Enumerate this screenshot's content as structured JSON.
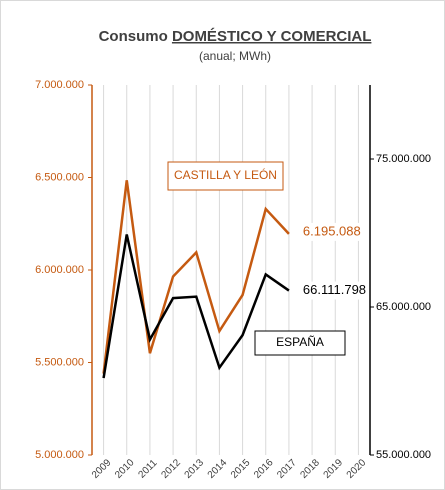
{
  "chart_data": {
    "type": "line",
    "title": [
      "Consumo",
      "DOMÉSTICO Y COMERCIAL"
    ],
    "subtitle": "(anual; MWh)",
    "categories": [
      "2009",
      "2010",
      "2011",
      "2012",
      "2013",
      "2014",
      "2015",
      "2016",
      "2017",
      "2018",
      "2019",
      "2020"
    ],
    "series": [
      {
        "name": "CASTILLA Y LEÓN",
        "color": "#c55a11",
        "axis": "y",
        "values": [
          5440000,
          6485000,
          5550000,
          5965000,
          6095000,
          5670000,
          5865000,
          6330000,
          6195088,
          null,
          null,
          null
        ],
        "value_labels": [
          null,
          null,
          null,
          null,
          null,
          null,
          null,
          null,
          "6.195.088",
          null,
          null,
          null
        ]
      },
      {
        "name": "ESPAÑA",
        "color": "#000000",
        "axis": "y2",
        "values": [
          60200000,
          69900000,
          62800000,
          65600000,
          65700000,
          60900000,
          63100000,
          67200000,
          66111798,
          null,
          null,
          null
        ],
        "value_labels": [
          null,
          null,
          null,
          null,
          null,
          null,
          null,
          null,
          "66.111.798",
          null,
          null,
          null
        ]
      }
    ],
    "ylim": [
      5000000,
      7000000
    ],
    "yticks": [
      {
        "value": 5000000,
        "label": "5.000.000"
      },
      {
        "value": 5500000,
        "label": "5.500.000"
      },
      {
        "value": 6000000,
        "label": "6.000.000"
      },
      {
        "value": 6500000,
        "label": "6.500.000"
      },
      {
        "value": 7000000,
        "label": "7.000.000"
      }
    ],
    "y2lim": [
      55000000,
      80000000
    ],
    "y2ticks": [
      {
        "value": 55000000,
        "label": "55.000.000"
      },
      {
        "value": 65000000,
        "label": "65.000.000"
      },
      {
        "value": 75000000,
        "label": "75.000.000"
      }
    ],
    "grid": true
  }
}
